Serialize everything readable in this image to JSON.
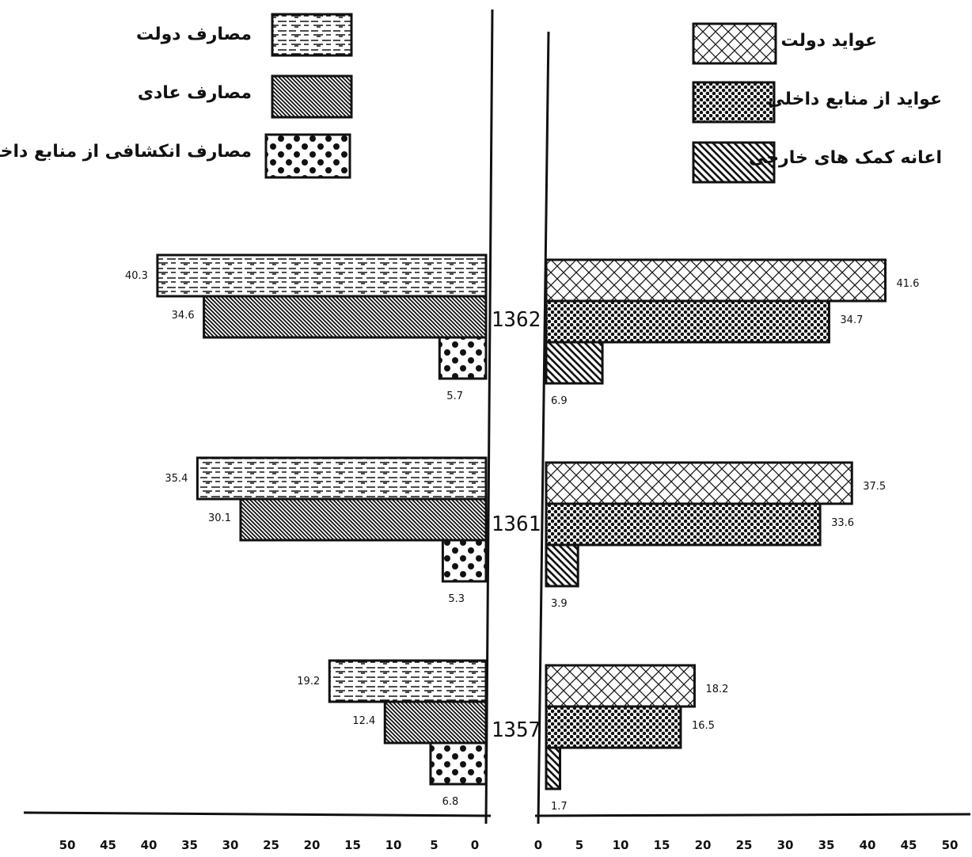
{
  "chart_data": {
    "type": "bar",
    "orientation": "horizontal-butterfly",
    "categories": [
      "1362",
      "1361",
      "1357"
    ],
    "left_panel": {
      "series": [
        {
          "name": "مصارف دولت",
          "pattern": "dashes",
          "values": [
            40.3,
            35.4,
            19.2
          ]
        },
        {
          "name": "مصارف عادی",
          "pattern": "diagonal-dense",
          "values": [
            34.6,
            30.1,
            12.4
          ]
        },
        {
          "name": "مصارف انکشافی از منابع داخلی",
          "pattern": "dots-large",
          "values": [
            5.7,
            5.3,
            6.8
          ]
        }
      ],
      "axis_ticks": [
        "50",
        "45",
        "40",
        "35",
        "30",
        "25",
        "20",
        "15",
        "10",
        "5",
        "0"
      ],
      "xlim": [
        0,
        50
      ]
    },
    "right_panel": {
      "series": [
        {
          "name": "عواید دولت",
          "pattern": "crosshatch",
          "values": [
            41.6,
            37.5,
            18.2
          ]
        },
        {
          "name": "عواید از منابع داخلی",
          "pattern": "checker-dots",
          "values": [
            34.7,
            33.6,
            16.5
          ]
        },
        {
          "name": "اعانه کمک های خارجی",
          "pattern": "diagonal",
          "values": [
            6.9,
            3.9,
            1.7
          ]
        }
      ],
      "axis_ticks": [
        "0",
        "5",
        "10",
        "15",
        "20",
        "25",
        "30",
        "35",
        "40",
        "45",
        "50"
      ],
      "xlim": [
        0,
        50
      ]
    },
    "value_labels": {
      "left": [
        [
          "40.3",
          "34.6",
          "5.7"
        ],
        [
          "35.4",
          "30.1",
          "5.3"
        ],
        [
          "19.2",
          "12.4",
          "6.8"
        ]
      ],
      "right": [
        [
          "41.6",
          "34.7",
          "6.9"
        ],
        [
          "37.5",
          "33.6",
          "3.9"
        ],
        [
          "18.2",
          "16.5",
          "1.7"
        ]
      ]
    },
    "grid": false,
    "legend_left": "top-left",
    "legend_right": "top-right",
    "colors": {
      "ink": "#111111",
      "paper": "#ffffff"
    }
  }
}
